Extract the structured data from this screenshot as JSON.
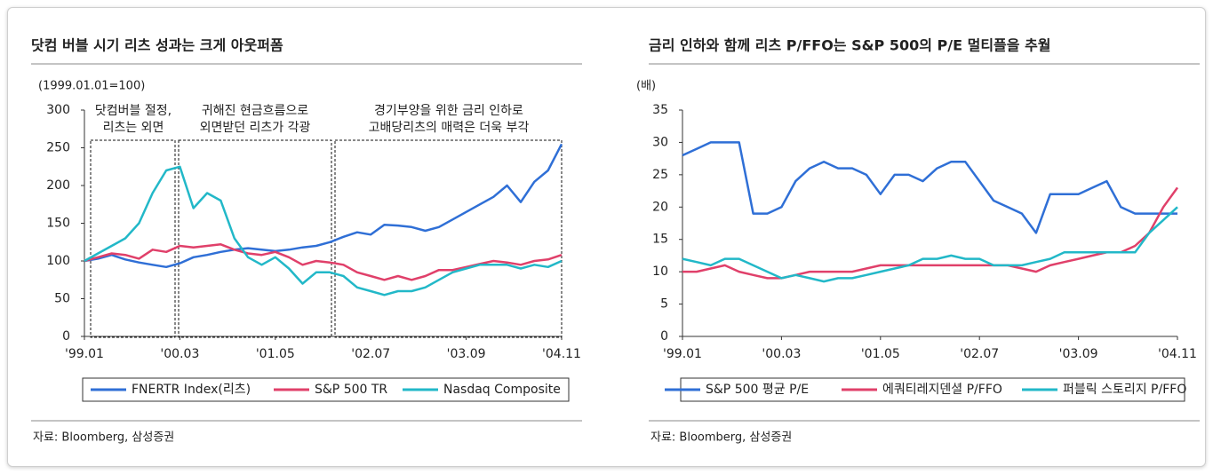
{
  "chart_data": [
    {
      "type": "line",
      "title": "닷컴 버블 시기 리츠 성과는 크게 아웃퍼폼",
      "subtitle": "(1999.01.01=100)",
      "annotations": [
        [
          "닷컴버블 절정,",
          "리츠는 외면"
        ],
        [
          "귀해진 현금흐름으로",
          "외면받던 리츠가 각광"
        ],
        [
          "경기부양을 위한 금리 인하로",
          "고배당리츠의 매력은 더욱 부각"
        ]
      ],
      "categories": [
        "'99.01",
        null,
        null,
        null,
        null,
        null,
        null,
        "'00.03",
        null,
        null,
        null,
        null,
        null,
        null,
        "'01.05",
        null,
        null,
        null,
        null,
        null,
        null,
        "'02.07",
        null,
        null,
        null,
        null,
        null,
        null,
        "'03.09",
        null,
        null,
        null,
        null,
        null,
        null,
        "'04.11"
      ],
      "series": [
        {
          "name": "FNERTR Index(리츠)",
          "color": "#2f6fd6",
          "values": [
            100,
            103,
            108,
            102,
            98,
            95,
            92,
            97,
            105,
            108,
            112,
            115,
            117,
            115,
            113,
            115,
            118,
            120,
            125,
            132,
            138,
            135,
            148,
            147,
            145,
            140,
            145,
            155,
            165,
            175,
            185,
            200,
            178,
            205,
            220,
            255
          ]
        },
        {
          "name": "S&P 500 TR",
          "color": "#e0406a",
          "values": [
            100,
            105,
            110,
            108,
            103,
            115,
            112,
            120,
            118,
            120,
            122,
            115,
            110,
            108,
            112,
            105,
            95,
            100,
            98,
            95,
            85,
            80,
            75,
            80,
            75,
            80,
            88,
            88,
            92,
            96,
            100,
            98,
            95,
            100,
            102,
            108
          ]
        },
        {
          "name": "Nasdaq Composite",
          "color": "#22b8c8",
          "values": [
            100,
            110,
            120,
            130,
            150,
            190,
            220,
            225,
            170,
            190,
            180,
            130,
            105,
            95,
            105,
            90,
            70,
            85,
            85,
            80,
            65,
            60,
            55,
            60,
            60,
            65,
            75,
            85,
            90,
            95,
            95,
            95,
            90,
            95,
            92,
            100
          ]
        }
      ],
      "ylim": [
        0,
        300
      ],
      "yticks": [
        0,
        50,
        100,
        150,
        200,
        250,
        300
      ],
      "source": "자료: Bloomberg, 삼성증권"
    },
    {
      "type": "line",
      "title": "금리 인하와 함께 리츠 P/FFO는 S&P 500의 P/E 멀티플을 추월",
      "subtitle": "(배)",
      "categories": [
        "'99.01",
        null,
        null,
        null,
        null,
        null,
        null,
        "'00.03",
        null,
        null,
        null,
        null,
        null,
        null,
        "'01.05",
        null,
        null,
        null,
        null,
        null,
        null,
        "'02.07",
        null,
        null,
        null,
        null,
        null,
        null,
        "'03.09",
        null,
        null,
        null,
        null,
        null,
        null,
        "'04.11"
      ],
      "series": [
        {
          "name": "S&P 500 평균 P/E",
          "color": "#2f6fd6",
          "values": [
            28,
            29,
            30,
            30,
            30,
            19,
            19,
            20,
            24,
            26,
            27,
            26,
            26,
            25,
            22,
            25,
            25,
            24,
            26,
            27,
            27,
            24,
            21,
            20,
            19,
            16,
            22,
            22,
            22,
            23,
            24,
            20,
            19,
            19,
            19,
            19
          ]
        },
        {
          "name": "에쿼티레지덴셜 P/FFO",
          "color": "#e0406a",
          "values": [
            10,
            10,
            10.5,
            11,
            10,
            9.5,
            9,
            9,
            9.5,
            10,
            10,
            10,
            10,
            10.5,
            11,
            11,
            11,
            11,
            11,
            11,
            11,
            11,
            11,
            11,
            10.5,
            10,
            11,
            11.5,
            12,
            12.5,
            13,
            13,
            14,
            16,
            20,
            23
          ]
        },
        {
          "name": "퍼블릭 스토리지 P/FFO",
          "color": "#22b8c8",
          "values": [
            12,
            11.5,
            11,
            12,
            12,
            11,
            10,
            9,
            9.5,
            9,
            8.5,
            9,
            9,
            9.5,
            10,
            10.5,
            11,
            12,
            12,
            12.5,
            12,
            12,
            11,
            11,
            11,
            11.5,
            12,
            13,
            13,
            13,
            13,
            13,
            13,
            16,
            18,
            20
          ]
        }
      ],
      "ylim": [
        0,
        35
      ],
      "yticks": [
        0,
        5,
        10,
        15,
        20,
        25,
        30,
        35
      ],
      "source": "자료: Bloomberg, 삼성증권"
    }
  ]
}
